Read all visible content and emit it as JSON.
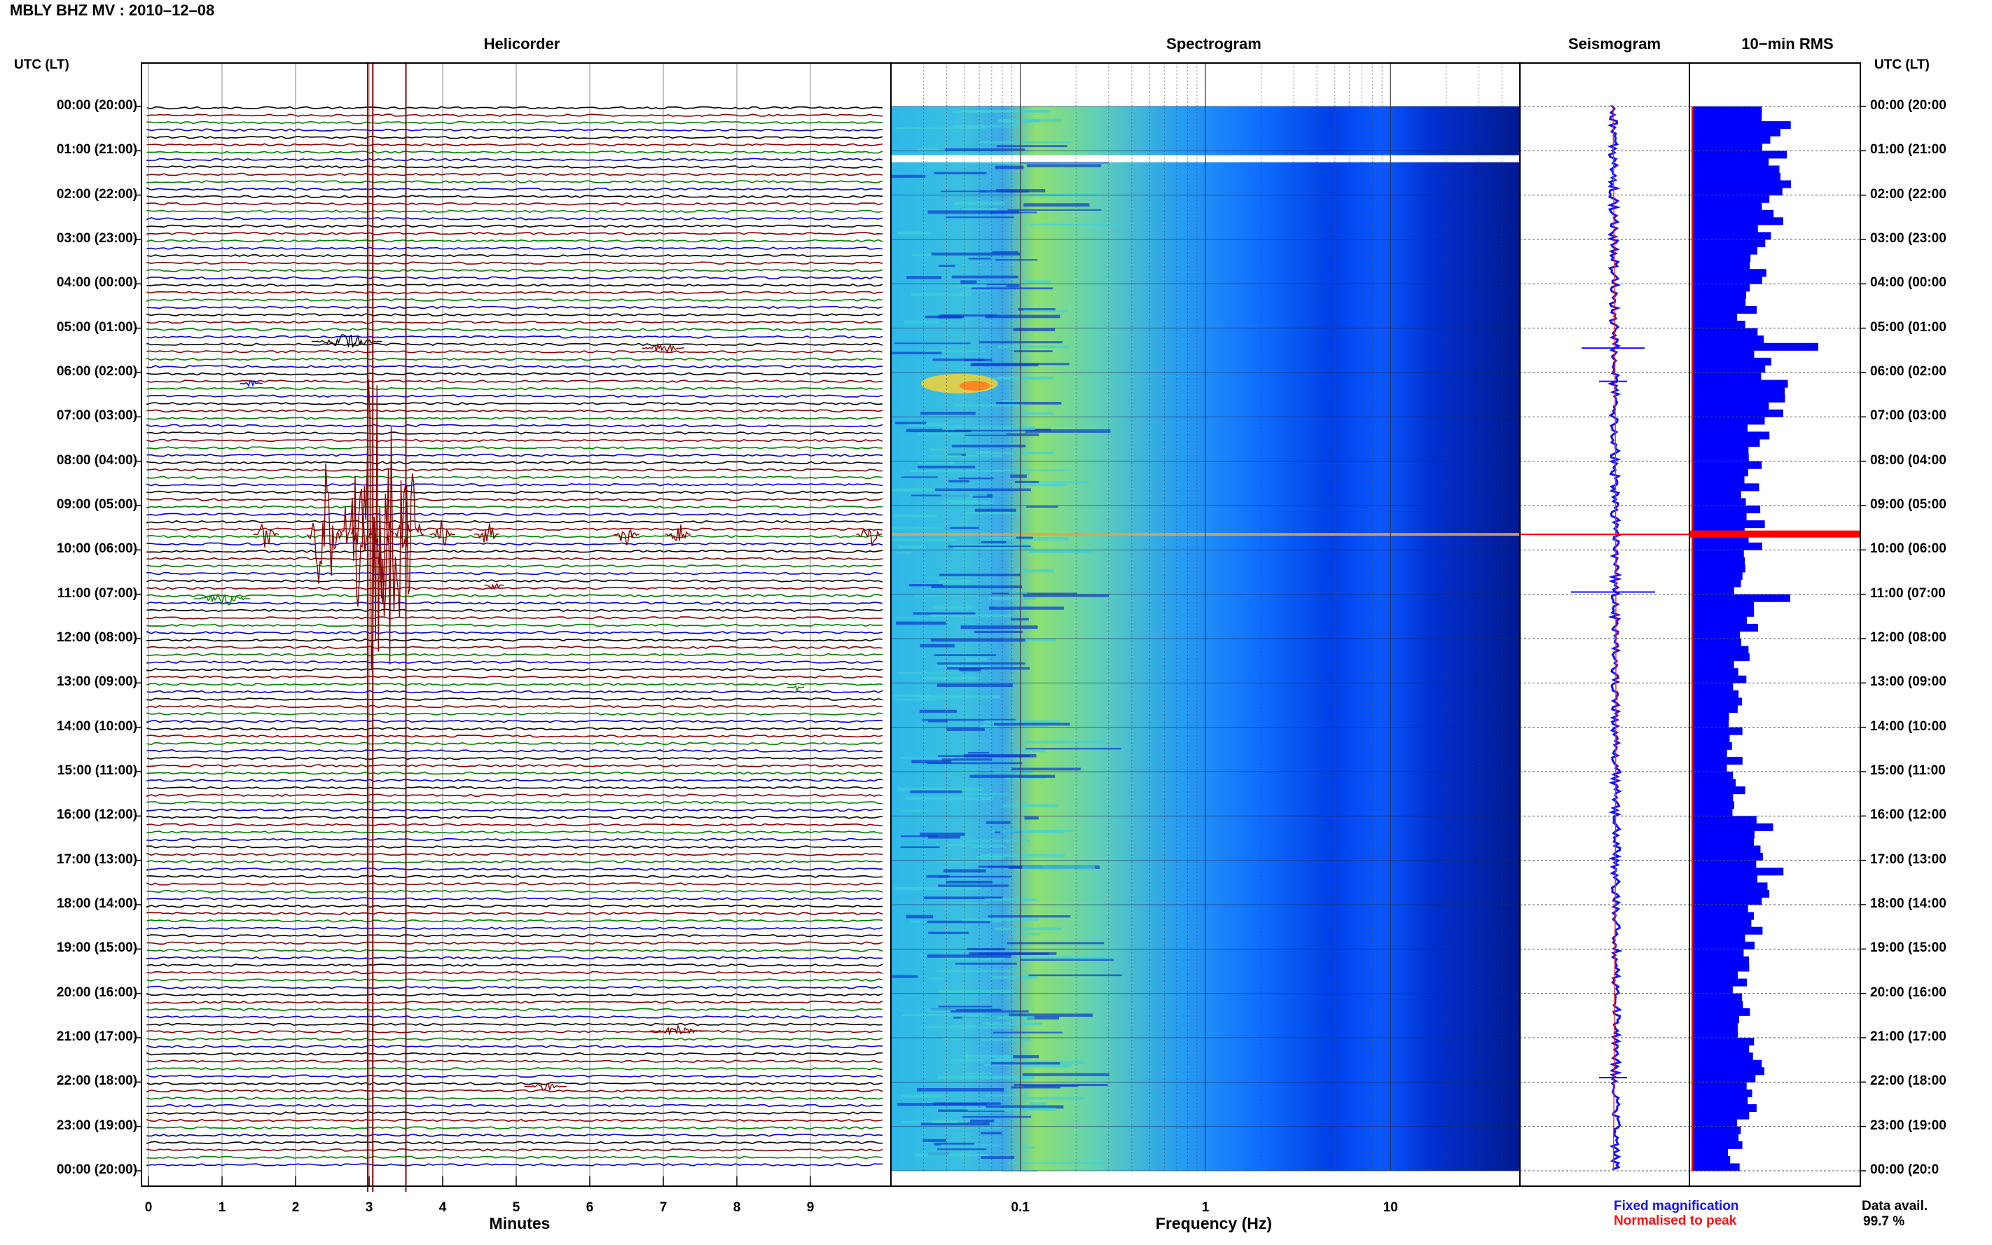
{
  "header": {
    "title": "MBLY BHZ MV : 2010–12–08"
  },
  "panels": {
    "helicorder_title": "Helicorder",
    "spectrogram_title": "Spectrogram",
    "seismogram_title": "Seismogram",
    "rms_title": "10−min RMS"
  },
  "axes": {
    "left_head": "UTC (LT)",
    "right_head": "UTC (LT)",
    "helicorder_xlabel": "Minutes",
    "spectrogram_xlabel": "Frequency (Hz)"
  },
  "legend": {
    "fixed": "Fixed magnification",
    "normalised": "Normalised to peak"
  },
  "availability": {
    "label": "Data avail.",
    "value": "99.7 %"
  },
  "colors": {
    "trace_red": "#8b0000",
    "trace_green": "#008000",
    "trace_blue": "#0000c8",
    "trace_black": "#000000",
    "rms_bar": "#0000ff",
    "peak_red": "#ff0000"
  },
  "chart_data": [
    {
      "type": "line",
      "name": "Helicorder",
      "x_ticks": [
        0,
        1,
        2,
        3,
        4,
        5,
        6,
        7,
        8,
        9
      ],
      "xlim": [
        0,
        10
      ],
      "ylim_hours": [
        0,
        24
      ],
      "traces_per_hour": 6,
      "trace_colors_cycle": [
        "black",
        "red",
        "green",
        "blue"
      ],
      "event_markers_minutes": [
        2.98,
        3.05,
        3.5
      ],
      "hour_labels_left": [
        "00:00 (20:00)",
        "01:00 (21:00)",
        "02:00 (22:00)",
        "03:00 (23:00)",
        "04:00 (00:00)",
        "05:00 (01:00)",
        "06:00 (02:00)",
        "07:00 (03:00)",
        "08:00 (04:00)",
        "09:00 (05:00)",
        "10:00 (06:00)",
        "11:00 (07:00)",
        "12:00 (08:00)",
        "13:00 (09:00)",
        "14:00 (10:00)",
        "15:00 (11:00)",
        "16:00 (12:00)",
        "17:00 (13:00)",
        "18:00 (14:00)",
        "19:00 (15:00)",
        "20:00 (16:00)",
        "21:00 (17:00)",
        "22:00 (18:00)",
        "23:00 (19:00)",
        "00:00 (20:00)"
      ]
    },
    {
      "type": "heatmap",
      "name": "Spectrogram",
      "x_scale": "log",
      "xlim": [
        0.02,
        50
      ],
      "x_tick_labels": [
        "0.1",
        "1",
        "10"
      ],
      "x_tick_values": [
        0.1,
        1,
        10
      ]
    },
    {
      "type": "line",
      "name": "Seismogram",
      "series": [
        "Fixed magnification",
        "Normalised to peak"
      ]
    },
    {
      "type": "bar",
      "name": "10-min RMS",
      "orientation": "horizontal",
      "bins_per_hour": 6,
      "peak_hour": 9.5,
      "relative_rms_by_hour": [
        0.6,
        0.62,
        0.55,
        0.45,
        0.4,
        0.55,
        0.6,
        0.48,
        0.42,
        0.45,
        0.35,
        0.4,
        0.35,
        0.32,
        0.3,
        0.33,
        0.5,
        0.55,
        0.45,
        0.35,
        0.38,
        0.45,
        0.4,
        0.3,
        0.28
      ]
    }
  ],
  "right_hour_labels": [
    "00:00 (20:00",
    "01:00 (21:00",
    "02:00 (22:00",
    "03:00 (23:00",
    "04:00 (00:00",
    "05:00 (01:00",
    "06:00 (02:00",
    "07:00 (03:00",
    "08:00 (04:00",
    "09:00 (05:00",
    "10:00 (06:00",
    "11:00 (07:00",
    "12:00 (08:00",
    "13:00 (09:00",
    "14:00 (10:00",
    "15:00 (11:00",
    "16:00 (12:00",
    "17:00 (13:00",
    "18:00 (14:00",
    "19:00 (15:00",
    "20:00 (16:00",
    "21:00 (17:00",
    "22:00 (18:00",
    "23:00 (19:00",
    "00:00 (20:0"
  ]
}
